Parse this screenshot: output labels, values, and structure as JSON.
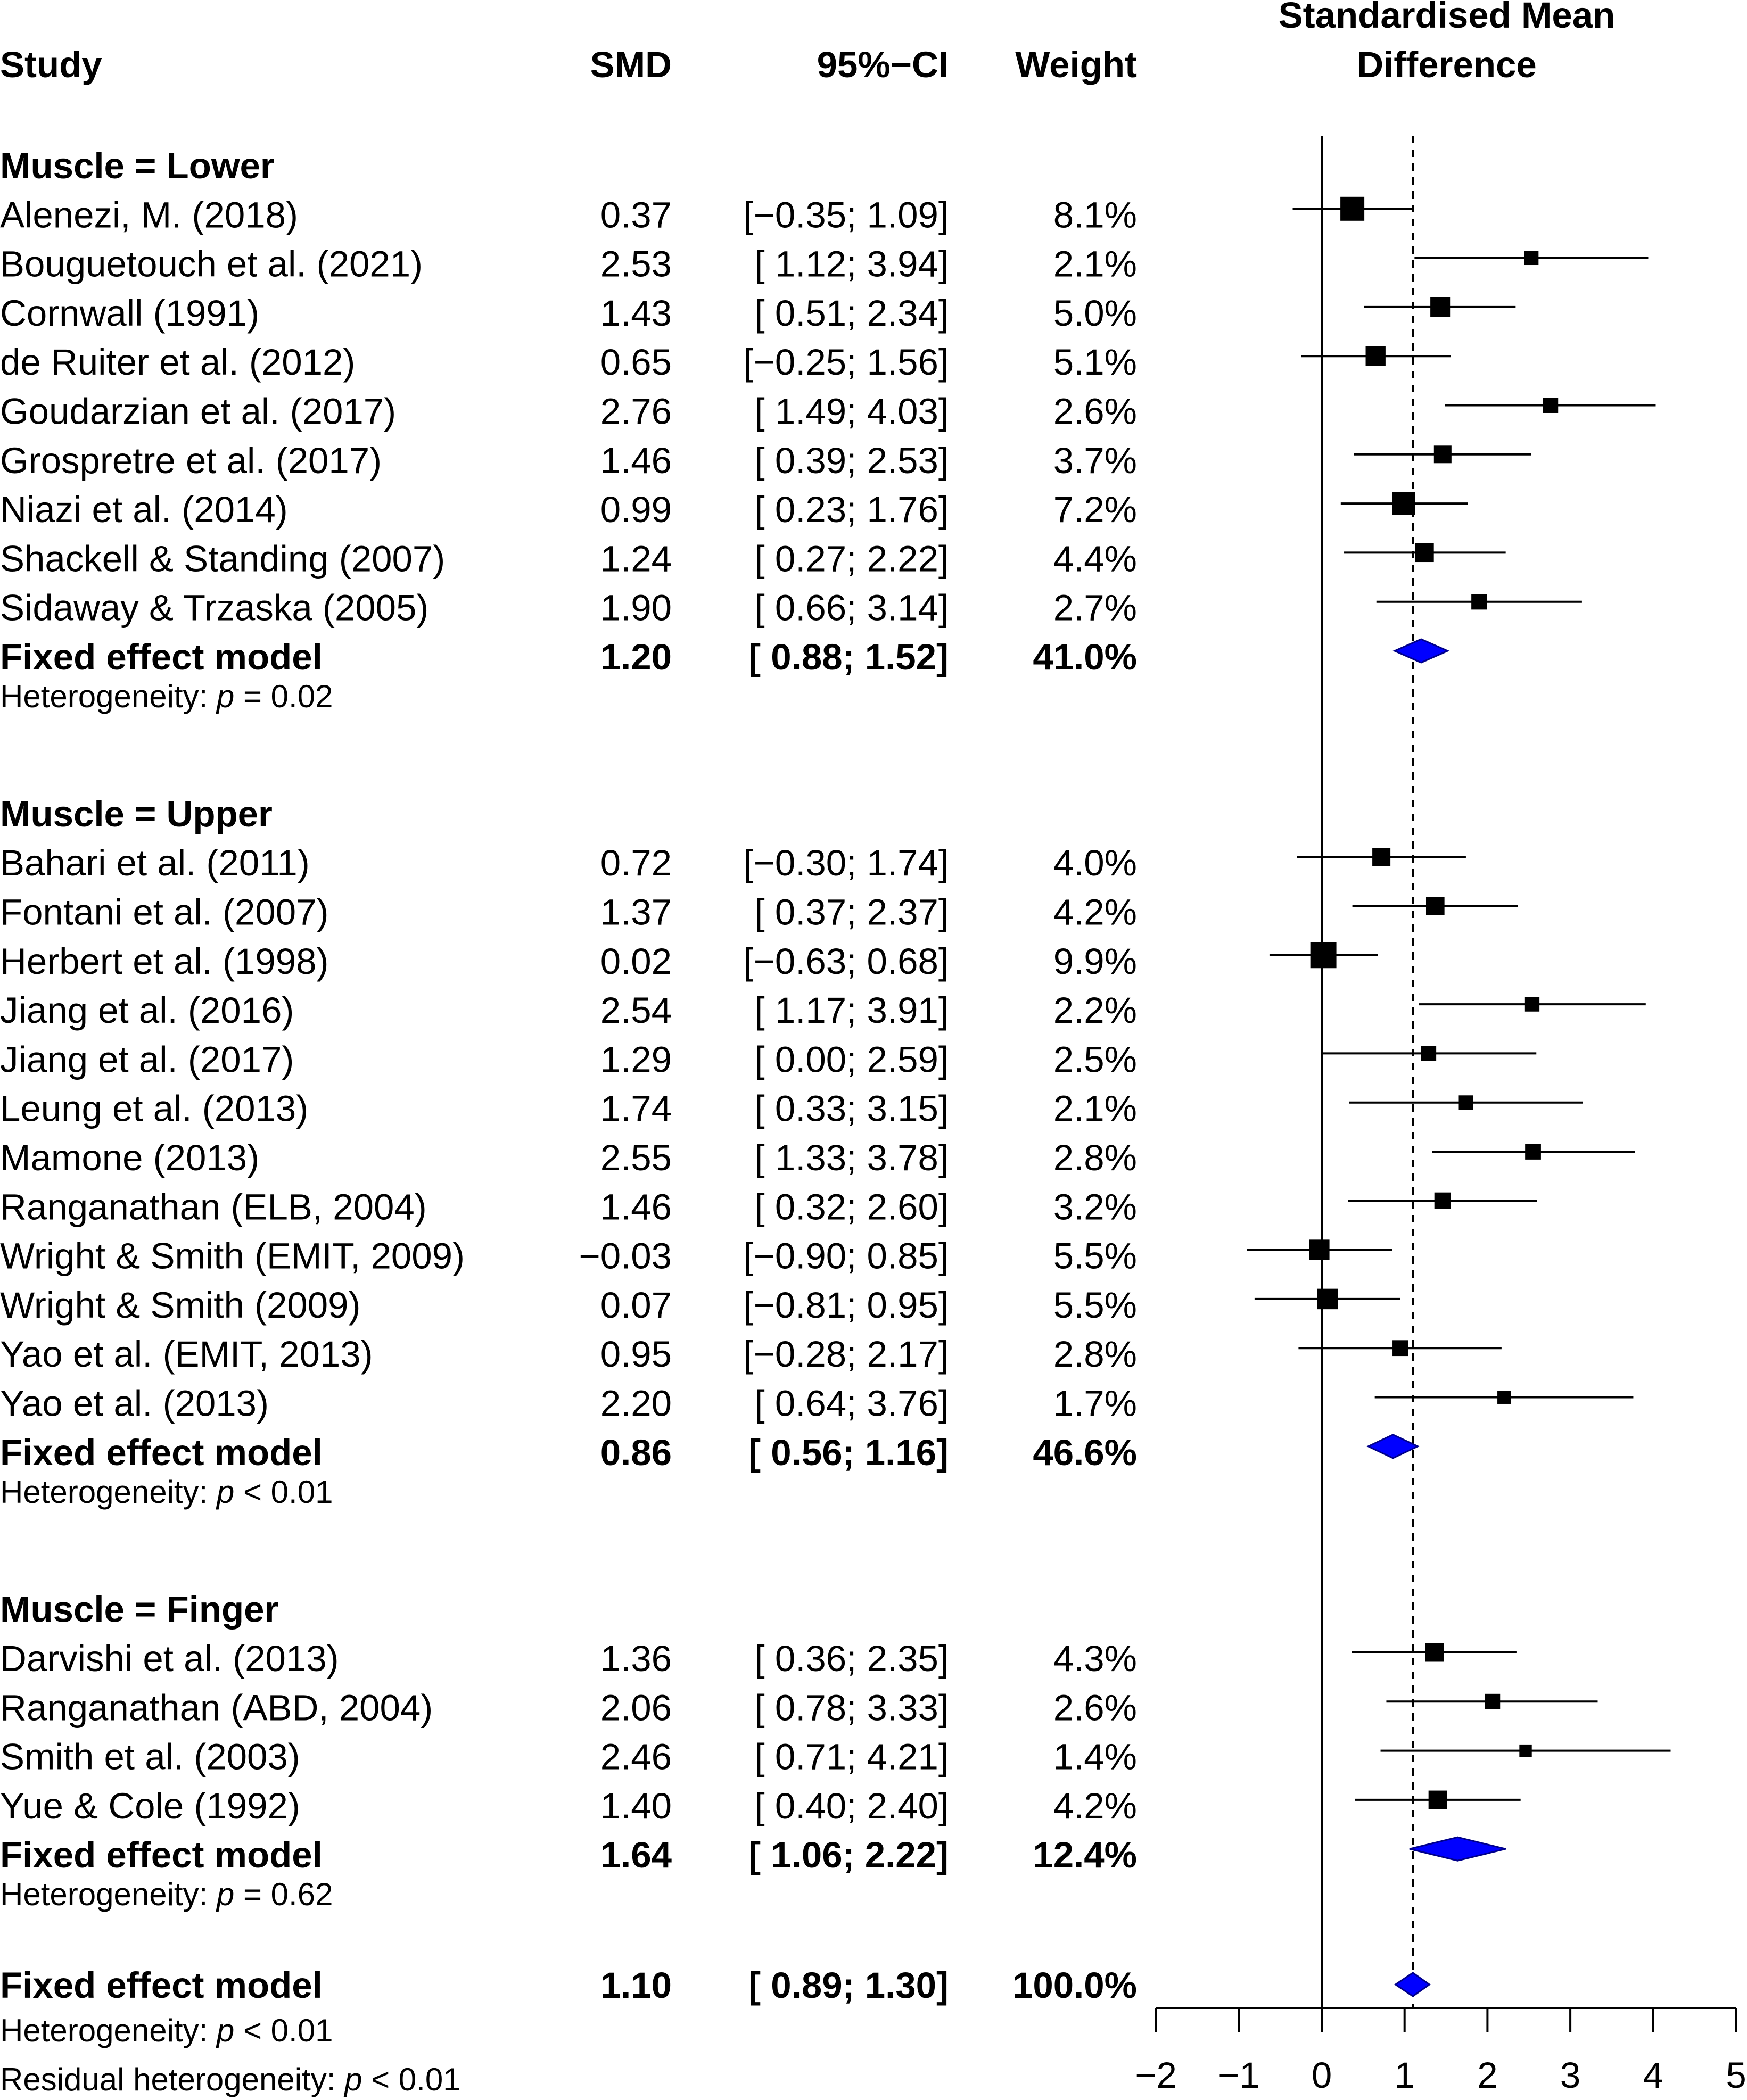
{
  "chart_data": {
    "type": "forest",
    "columns": {
      "study": "Study",
      "smd": "SMD",
      "ci": "95%−CI",
      "weight": "Weight",
      "plot_title": [
        "Standardised Mean",
        "Difference"
      ]
    },
    "x_axis": {
      "min": -2,
      "max": 5,
      "ticks": [
        -2,
        -1,
        0,
        1,
        2,
        3,
        4,
        5
      ],
      "tick_labels": [
        "−2",
        "−1",
        "0",
        "1",
        "2",
        "3",
        "4",
        "5"
      ],
      "null_line": 0,
      "overall_line": 1.1
    },
    "subgroups": [
      {
        "label": "Muscle = Lower",
        "studies": [
          {
            "name": "Alenezi, M. (2018)",
            "smd": 0.37,
            "lower": -0.35,
            "upper": 1.09,
            "smd_text": "0.37",
            "ci_text": "[−0.35; 1.09]",
            "weight": 8.1,
            "weight_text": "8.1%"
          },
          {
            "name": "Bouguetouch et al. (2021)",
            "smd": 2.53,
            "lower": 1.12,
            "upper": 3.94,
            "smd_text": "2.53",
            "ci_text": "[ 1.12; 3.94]",
            "weight": 2.1,
            "weight_text": "2.1%"
          },
          {
            "name": "Cornwall (1991)",
            "smd": 1.43,
            "lower": 0.51,
            "upper": 2.34,
            "smd_text": "1.43",
            "ci_text": "[ 0.51; 2.34]",
            "weight": 5.0,
            "weight_text": "5.0%"
          },
          {
            "name": "de Ruiter et al. (2012)",
            "smd": 0.65,
            "lower": -0.25,
            "upper": 1.56,
            "smd_text": "0.65",
            "ci_text": "[−0.25; 1.56]",
            "weight": 5.1,
            "weight_text": "5.1%"
          },
          {
            "name": "Goudarzian et al. (2017)",
            "smd": 2.76,
            "lower": 1.49,
            "upper": 4.03,
            "smd_text": "2.76",
            "ci_text": "[ 1.49; 4.03]",
            "weight": 2.6,
            "weight_text": "2.6%"
          },
          {
            "name": "Grospretre et al. (2017)",
            "smd": 1.46,
            "lower": 0.39,
            "upper": 2.53,
            "smd_text": "1.46",
            "ci_text": "[ 0.39; 2.53]",
            "weight": 3.7,
            "weight_text": "3.7%"
          },
          {
            "name": "Niazi et al. (2014)",
            "smd": 0.99,
            "lower": 0.23,
            "upper": 1.76,
            "smd_text": "0.99",
            "ci_text": "[ 0.23; 1.76]",
            "weight": 7.2,
            "weight_text": "7.2%"
          },
          {
            "name": "Shackell & Standing (2007)",
            "smd": 1.24,
            "lower": 0.27,
            "upper": 2.22,
            "smd_text": "1.24",
            "ci_text": "[ 0.27; 2.22]",
            "weight": 4.4,
            "weight_text": "4.4%"
          },
          {
            "name": "Sidaway & Trzaska (2005)",
            "smd": 1.9,
            "lower": 0.66,
            "upper": 3.14,
            "smd_text": "1.90",
            "ci_text": "[ 0.66; 3.14]",
            "weight": 2.7,
            "weight_text": "2.7%"
          }
        ],
        "pooled": {
          "label": "Fixed effect model",
          "smd": 1.2,
          "lower": 0.88,
          "upper": 1.52,
          "smd_text": "1.20",
          "ci_text": "[ 0.88; 1.52]",
          "weight_text": "41.0%"
        },
        "heterogeneity": {
          "prefix": "Heterogeneity: ",
          "p": "p",
          "value": " = 0.02"
        }
      },
      {
        "label": "Muscle = Upper",
        "studies": [
          {
            "name": "Bahari et al. (2011)",
            "smd": 0.72,
            "lower": -0.3,
            "upper": 1.74,
            "smd_text": "0.72",
            "ci_text": "[−0.30; 1.74]",
            "weight": 4.0,
            "weight_text": "4.0%"
          },
          {
            "name": "Fontani et al. (2007)",
            "smd": 1.37,
            "lower": 0.37,
            "upper": 2.37,
            "smd_text": "1.37",
            "ci_text": "[ 0.37; 2.37]",
            "weight": 4.2,
            "weight_text": "4.2%"
          },
          {
            "name": "Herbert et al. (1998)",
            "smd": 0.02,
            "lower": -0.63,
            "upper": 0.68,
            "smd_text": "0.02",
            "ci_text": "[−0.63; 0.68]",
            "weight": 9.9,
            "weight_text": "9.9%"
          },
          {
            "name": "Jiang et al. (2016)",
            "smd": 2.54,
            "lower": 1.17,
            "upper": 3.91,
            "smd_text": "2.54",
            "ci_text": "[ 1.17; 3.91]",
            "weight": 2.2,
            "weight_text": "2.2%"
          },
          {
            "name": "Jiang et al. (2017)",
            "smd": 1.29,
            "lower": 0.0,
            "upper": 2.59,
            "smd_text": "1.29",
            "ci_text": "[ 0.00; 2.59]",
            "weight": 2.5,
            "weight_text": "2.5%"
          },
          {
            "name": "Leung et al. (2013)",
            "smd": 1.74,
            "lower": 0.33,
            "upper": 3.15,
            "smd_text": "1.74",
            "ci_text": "[ 0.33; 3.15]",
            "weight": 2.1,
            "weight_text": "2.1%"
          },
          {
            "name": "Mamone (2013)",
            "smd": 2.55,
            "lower": 1.33,
            "upper": 3.78,
            "smd_text": "2.55",
            "ci_text": "[ 1.33; 3.78]",
            "weight": 2.8,
            "weight_text": "2.8%"
          },
          {
            "name": "Ranganathan (ELB, 2004)",
            "smd": 1.46,
            "lower": 0.32,
            "upper": 2.6,
            "smd_text": "1.46",
            "ci_text": "[ 0.32; 2.60]",
            "weight": 3.2,
            "weight_text": "3.2%"
          },
          {
            "name": "Wright & Smith (EMIT, 2009)",
            "smd": -0.03,
            "lower": -0.9,
            "upper": 0.85,
            "smd_text": "−0.03",
            "ci_text": "[−0.90; 0.85]",
            "weight": 5.5,
            "weight_text": "5.5%"
          },
          {
            "name": "Wright & Smith (2009)",
            "smd": 0.07,
            "lower": -0.81,
            "upper": 0.95,
            "smd_text": "0.07",
            "ci_text": "[−0.81; 0.95]",
            "weight": 5.5,
            "weight_text": "5.5%"
          },
          {
            "name": "Yao et al. (EMIT, 2013)",
            "smd": 0.95,
            "lower": -0.28,
            "upper": 2.17,
            "smd_text": "0.95",
            "ci_text": "[−0.28; 2.17]",
            "weight": 2.8,
            "weight_text": "2.8%"
          },
          {
            "name": "Yao et al. (2013)",
            "smd": 2.2,
            "lower": 0.64,
            "upper": 3.76,
            "smd_text": "2.20",
            "ci_text": "[ 0.64; 3.76]",
            "weight": 1.7,
            "weight_text": "1.7%"
          }
        ],
        "pooled": {
          "label": "Fixed effect model",
          "smd": 0.86,
          "lower": 0.56,
          "upper": 1.16,
          "smd_text": "0.86",
          "ci_text": "[ 0.56; 1.16]",
          "weight_text": "46.6%"
        },
        "heterogeneity": {
          "prefix": "Heterogeneity: ",
          "p": "p",
          "value": " < 0.01"
        }
      },
      {
        "label": "Muscle = Finger",
        "studies": [
          {
            "name": "Darvishi et al. (2013)",
            "smd": 1.36,
            "lower": 0.36,
            "upper": 2.35,
            "smd_text": "1.36",
            "ci_text": "[ 0.36; 2.35]",
            "weight": 4.3,
            "weight_text": "4.3%"
          },
          {
            "name": "Ranganathan  (ABD, 2004)",
            "smd": 2.06,
            "lower": 0.78,
            "upper": 3.33,
            "smd_text": "2.06",
            "ci_text": "[ 0.78; 3.33]",
            "weight": 2.6,
            "weight_text": "2.6%"
          },
          {
            "name": "Smith et al. (2003)",
            "smd": 2.46,
            "lower": 0.71,
            "upper": 4.21,
            "smd_text": "2.46",
            "ci_text": "[ 0.71; 4.21]",
            "weight": 1.4,
            "weight_text": "1.4%"
          },
          {
            "name": "Yue & Cole (1992)",
            "smd": 1.4,
            "lower": 0.4,
            "upper": 2.4,
            "smd_text": "1.40",
            "ci_text": "[ 0.40; 2.40]",
            "weight": 4.2,
            "weight_text": "4.2%"
          }
        ],
        "pooled": {
          "label": "Fixed effect model",
          "smd": 1.64,
          "lower": 1.06,
          "upper": 2.22,
          "smd_text": "1.64",
          "ci_text": "[ 1.06; 2.22]",
          "weight_text": "12.4%"
        },
        "heterogeneity": {
          "prefix": "Heterogeneity: ",
          "p": "p",
          "value": " = 0.62"
        }
      }
    ],
    "overall": {
      "label": "Fixed effect model",
      "smd": 1.1,
      "lower": 0.89,
      "upper": 1.3,
      "smd_text": "1.10",
      "ci_text": "[ 0.89; 1.30]",
      "weight_text": "100.0%",
      "heterogeneity": {
        "prefix": "Heterogeneity: ",
        "p": "p",
        "value": " < 0.01"
      },
      "residual_heterogeneity": {
        "prefix": "Residual heterogeneity: ",
        "p": "p",
        "value": " < 0.01"
      }
    },
    "colors": {
      "square": "#000000",
      "diamond_fill": "#0000ff",
      "diamond_stroke": "#00008b",
      "line": "#000000"
    }
  }
}
